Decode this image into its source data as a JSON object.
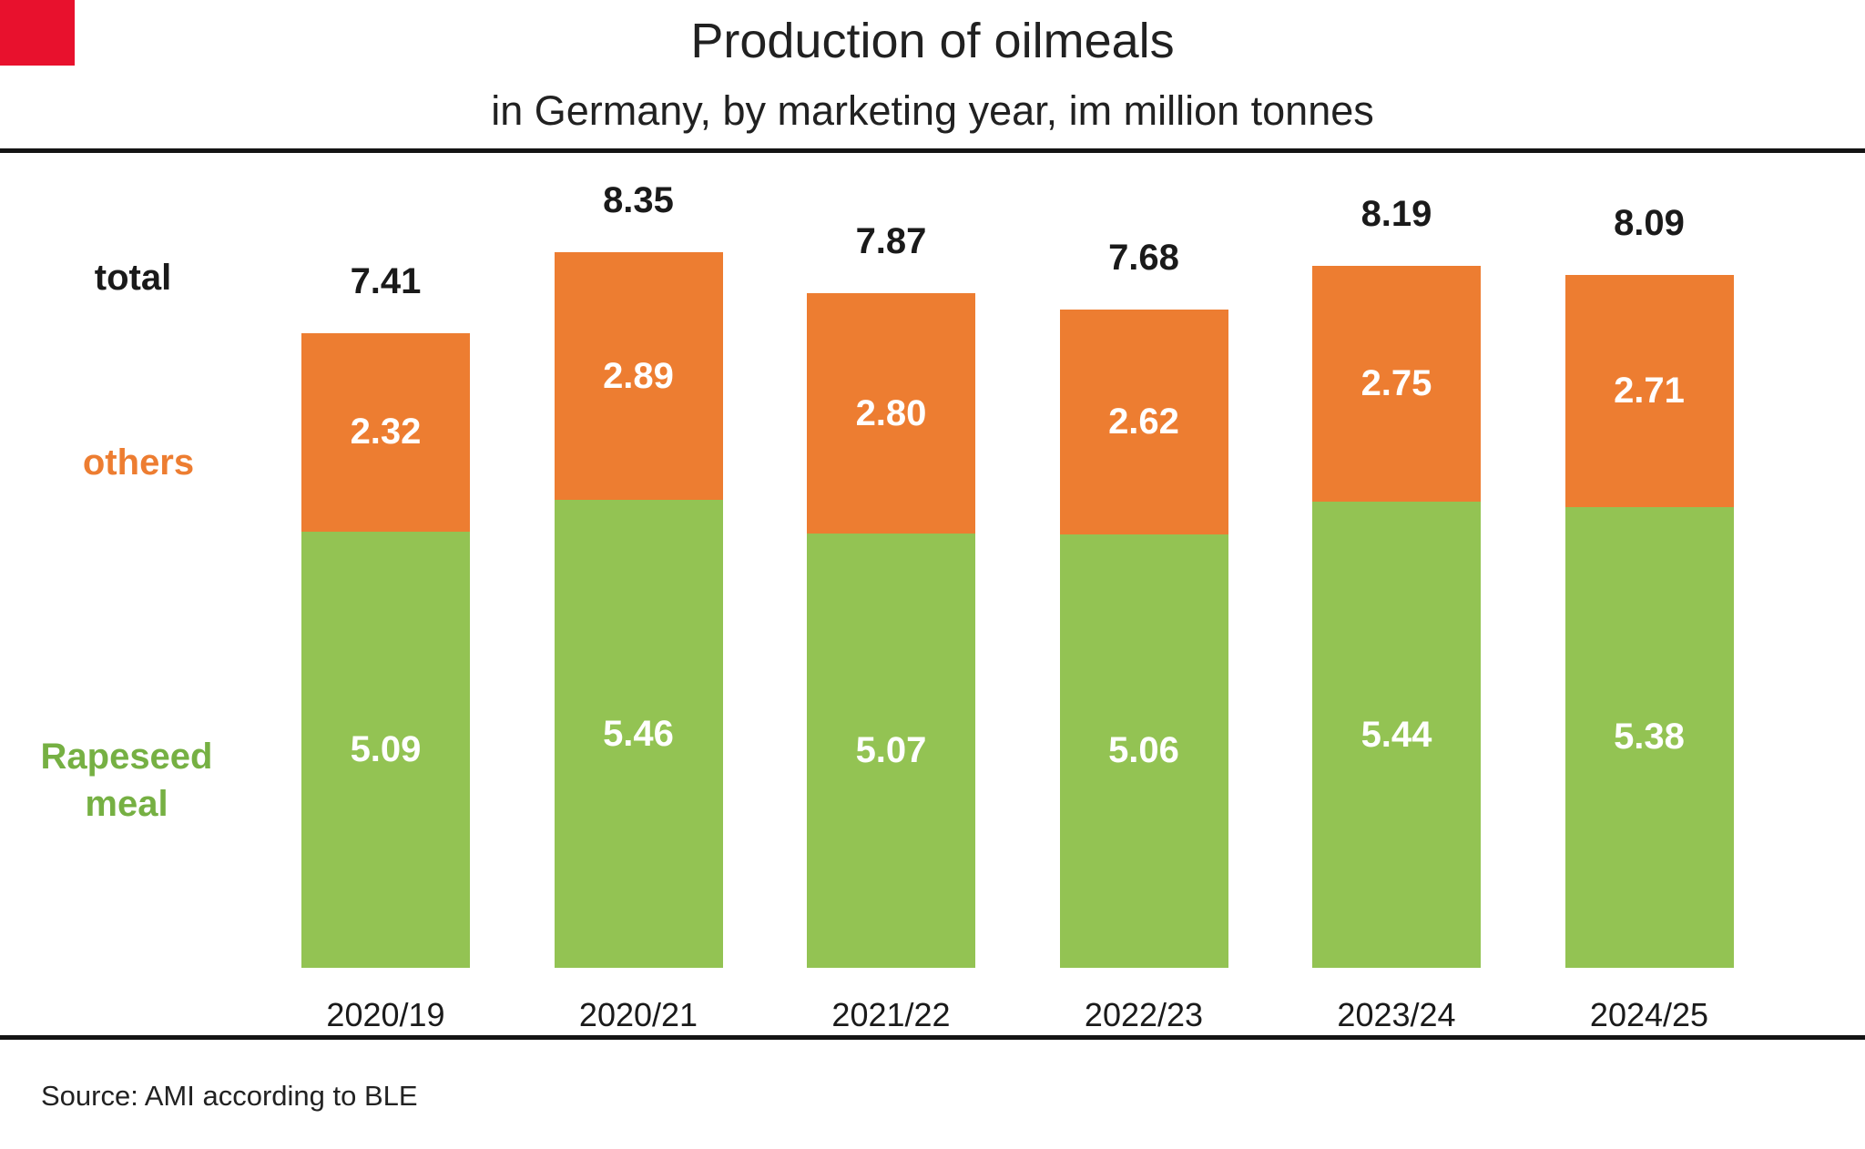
{
  "header": {
    "title": "Production of oilmeals",
    "subtitle": "in Germany, by marketing year, im million tonnes"
  },
  "side_labels": {
    "total": "total",
    "others": "others",
    "rapeseed_line1": "Rapeseed",
    "rapeseed_line2": "meal"
  },
  "footer": {
    "source": "Source: AMI according to BLE"
  },
  "colors": {
    "others_bar": "#ED7D31",
    "rapeseed_bar": "#93C353",
    "others_label_text": "#ED7D31",
    "rapeseed_label_text": "#76B043",
    "value_text": "#FFFFFF",
    "text": "#1A1A1A",
    "divider": "#141414",
    "corner_marker": "#E8112D"
  },
  "chart_data": {
    "type": "bar",
    "stacked": true,
    "title": "Production of oilmeals",
    "subtitle": "in Germany, by marketing year, im million tonnes",
    "unit": "million tonnes",
    "categories": [
      "2020/19",
      "2020/21",
      "2021/22",
      "2022/23",
      "2023/24",
      "2024/25"
    ],
    "series": [
      {
        "name": "Rapeseed meal",
        "color": "#93C353",
        "values": [
          5.09,
          5.46,
          5.07,
          5.06,
          5.44,
          5.38
        ],
        "labels": [
          "5.09",
          "5.46",
          "5.07",
          "5.06",
          "5.44",
          "5.38"
        ]
      },
      {
        "name": "others",
        "color": "#ED7D31",
        "values": [
          2.32,
          2.89,
          2.8,
          2.62,
          2.75,
          2.71
        ],
        "labels": [
          "2.32",
          "2.89",
          "2.80",
          "2.62",
          "2.75",
          "2.71"
        ]
      }
    ],
    "totals": [
      7.41,
      8.35,
      7.87,
      7.68,
      8.19,
      8.09
    ],
    "totals_labels": [
      "7.41",
      "8.35",
      "7.87",
      "7.68",
      "8.19",
      "8.09"
    ],
    "ylim": [
      0,
      9
    ],
    "grid": false,
    "legend_position": "left"
  }
}
